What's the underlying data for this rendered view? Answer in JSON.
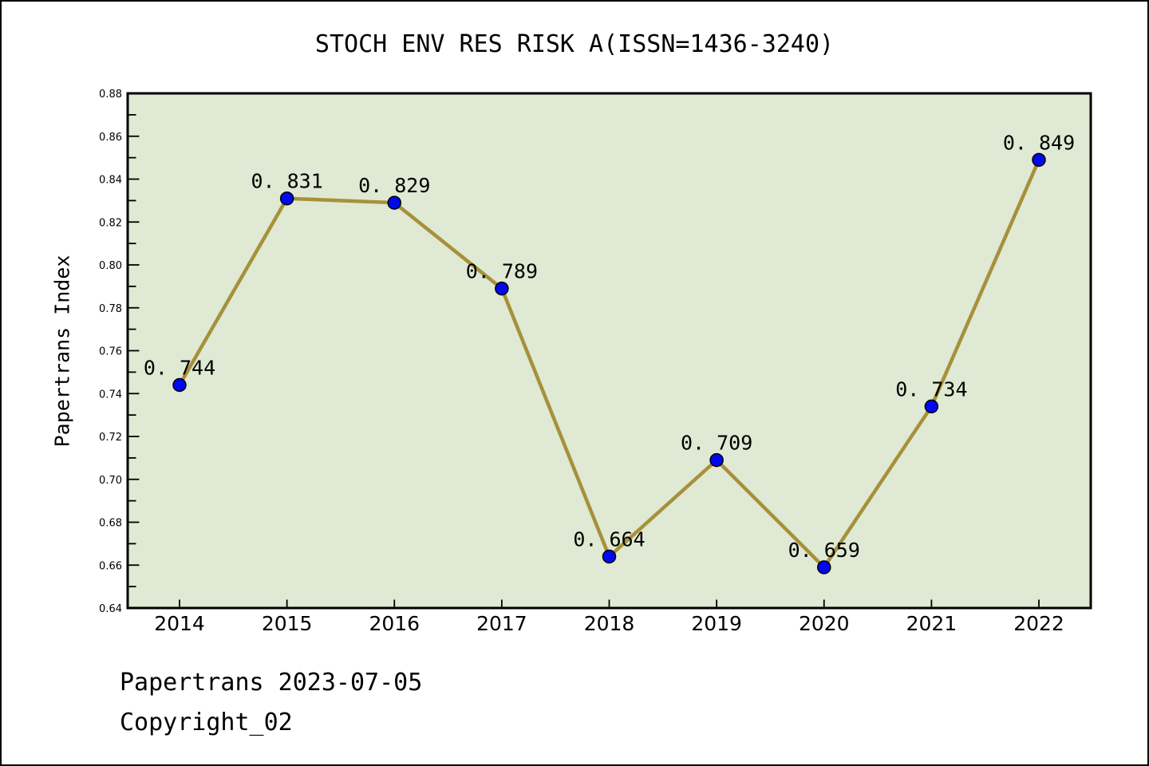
{
  "title": "STOCH ENV RES RISK A(ISSN=1436-3240)",
  "footer": {
    "line1": "Papertrans 2023-07-05",
    "line2": "Copyright_02"
  },
  "chart_data": {
    "type": "line",
    "title": "STOCH ENV RES RISK A(ISSN=1436-3240)",
    "xlabel": "",
    "ylabel": "Papertrans Index",
    "categories": [
      "2014",
      "2015",
      "2016",
      "2017",
      "2018",
      "2019",
      "2020",
      "2021",
      "2022"
    ],
    "values": [
      0.744,
      0.831,
      0.829,
      0.789,
      0.664,
      0.709,
      0.659,
      0.734,
      0.849
    ],
    "point_labels": [
      "0. 744",
      "0. 831",
      "0. 829",
      "0. 789",
      "0. 664",
      "0. 709",
      "0. 659",
      "0. 734",
      "0. 849"
    ],
    "ylim": [
      0.64,
      0.88
    ],
    "y_major_step": 0.02,
    "y_minor_step": 0.01,
    "grid": false,
    "legend_position": "none",
    "colors": {
      "line": "#a6913a",
      "marker_fill": "#0008f0",
      "marker_edge": "#000000",
      "plot_background": "#dfe9d3",
      "axis": "#000000",
      "text": "#000000",
      "page_background": "#ffffff"
    }
  }
}
